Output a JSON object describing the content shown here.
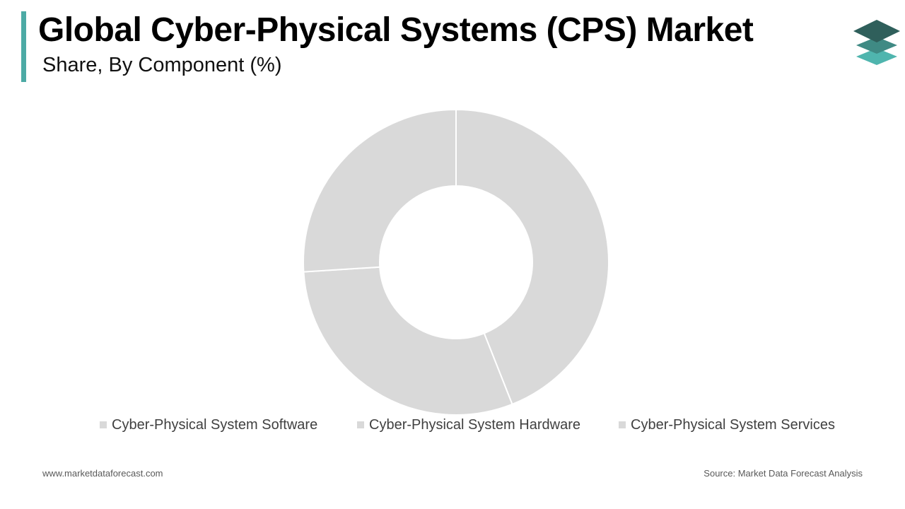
{
  "header": {
    "title": "Global Cyber-Physical Systems (CPS) Market",
    "subtitle": "Share, By Component (%)"
  },
  "colors": {
    "accent": "#4caaa5",
    "slice": "#d9d9d9",
    "legend_swatch": "#d9d9d9",
    "logo_dark": "#2f5f5b",
    "logo_mid": "#3f8a84",
    "logo_light": "#4fb5ae"
  },
  "chart_data": {
    "type": "pie",
    "hole": 0.5,
    "categories": [
      "Cyber-Physical System Software",
      "Cyber-Physical System Hardware",
      "Cyber-Physical System Services"
    ],
    "values": [
      44,
      30,
      26
    ],
    "legend_position": "bottom"
  },
  "footer": {
    "website": "www.marketdataforecast.com",
    "source": "Source: Market Data Forecast Analysis"
  }
}
